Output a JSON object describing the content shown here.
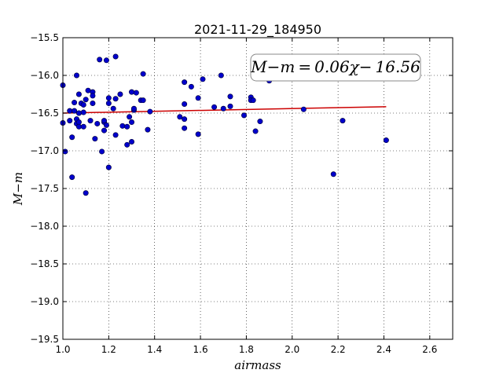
{
  "chart_data": {
    "type": "scatter",
    "title": "2021-11-29_184950",
    "xlabel": "airmass",
    "ylabel": "M−m",
    "xlim": [
      1.0,
      2.7
    ],
    "ylim": [
      -19.5,
      -15.5
    ],
    "y_inverted": false,
    "grid": true,
    "xticks": [
      "1.0",
      "1.2",
      "1.4",
      "1.6",
      "1.8",
      "2.0",
      "2.2",
      "2.4",
      "2.6"
    ],
    "yticks": [
      "−15.5",
      "−16.0",
      "−16.5",
      "−17.0",
      "−17.5",
      "−18.0",
      "−18.5",
      "−19.0",
      "−19.5"
    ],
    "annotation": "M−m = 0.06χ− 16.56",
    "point_color": "#0000cc",
    "fit_color": "#cc0000",
    "fit": {
      "slope": 0.06,
      "intercept": -16.56,
      "x_range": [
        1.0,
        2.41
      ]
    },
    "points": [
      {
        "x": 1.0,
        "y": -16.13
      },
      {
        "x": 1.0,
        "y": -16.63
      },
      {
        "x": 1.01,
        "y": -17.01
      },
      {
        "x": 1.03,
        "y": -16.47
      },
      {
        "x": 1.03,
        "y": -16.6
      },
      {
        "x": 1.04,
        "y": -16.82
      },
      {
        "x": 1.04,
        "y": -17.35
      },
      {
        "x": 1.05,
        "y": -16.36
      },
      {
        "x": 1.05,
        "y": -16.47
      },
      {
        "x": 1.06,
        "y": -16.0
      },
      {
        "x": 1.06,
        "y": -16.58
      },
      {
        "x": 1.06,
        "y": -16.64
      },
      {
        "x": 1.07,
        "y": -16.25
      },
      {
        "x": 1.07,
        "y": -16.5
      },
      {
        "x": 1.07,
        "y": -16.62
      },
      {
        "x": 1.07,
        "y": -16.68
      },
      {
        "x": 1.08,
        "y": -16.37
      },
      {
        "x": 1.09,
        "y": -16.39
      },
      {
        "x": 1.09,
        "y": -16.49
      },
      {
        "x": 1.09,
        "y": -16.68
      },
      {
        "x": 1.1,
        "y": -17.56
      },
      {
        "x": 1.1,
        "y": -16.32
      },
      {
        "x": 1.11,
        "y": -16.2
      },
      {
        "x": 1.12,
        "y": -16.6
      },
      {
        "x": 1.13,
        "y": -16.22
      },
      {
        "x": 1.13,
        "y": -16.37
      },
      {
        "x": 1.13,
        "y": -16.27
      },
      {
        "x": 1.14,
        "y": -16.84
      },
      {
        "x": 1.15,
        "y": -16.64
      },
      {
        "x": 1.16,
        "y": -15.79
      },
      {
        "x": 1.17,
        "y": -17.01
      },
      {
        "x": 1.18,
        "y": -16.62
      },
      {
        "x": 1.18,
        "y": -16.73
      },
      {
        "x": 1.18,
        "y": -16.6
      },
      {
        "x": 1.19,
        "y": -15.8
      },
      {
        "x": 1.19,
        "y": -16.66
      },
      {
        "x": 1.2,
        "y": -16.3
      },
      {
        "x": 1.2,
        "y": -16.37
      },
      {
        "x": 1.2,
        "y": -17.22
      },
      {
        "x": 1.22,
        "y": -16.44
      },
      {
        "x": 1.23,
        "y": -16.31
      },
      {
        "x": 1.23,
        "y": -16.79
      },
      {
        "x": 1.23,
        "y": -15.75
      },
      {
        "x": 1.25,
        "y": -16.25
      },
      {
        "x": 1.26,
        "y": -16.67
      },
      {
        "x": 1.28,
        "y": -16.92
      },
      {
        "x": 1.28,
        "y": -16.68
      },
      {
        "x": 1.29,
        "y": -16.55
      },
      {
        "x": 1.3,
        "y": -16.22
      },
      {
        "x": 1.3,
        "y": -16.62
      },
      {
        "x": 1.3,
        "y": -16.88
      },
      {
        "x": 1.31,
        "y": -16.46
      },
      {
        "x": 1.31,
        "y": -16.44
      },
      {
        "x": 1.32,
        "y": -16.23
      },
      {
        "x": 1.34,
        "y": -16.33
      },
      {
        "x": 1.35,
        "y": -16.33
      },
      {
        "x": 1.35,
        "y": -15.98
      },
      {
        "x": 1.37,
        "y": -16.72
      },
      {
        "x": 1.38,
        "y": -16.48
      },
      {
        "x": 1.51,
        "y": -16.55
      },
      {
        "x": 1.53,
        "y": -16.09
      },
      {
        "x": 1.53,
        "y": -16.38
      },
      {
        "x": 1.53,
        "y": -16.58
      },
      {
        "x": 1.53,
        "y": -16.7
      },
      {
        "x": 1.56,
        "y": -16.15
      },
      {
        "x": 1.59,
        "y": -16.3
      },
      {
        "x": 1.59,
        "y": -16.78
      },
      {
        "x": 1.61,
        "y": -16.05
      },
      {
        "x": 1.66,
        "y": -16.42
      },
      {
        "x": 1.69,
        "y": -16.0
      },
      {
        "x": 1.7,
        "y": -16.44
      },
      {
        "x": 1.73,
        "y": -16.28
      },
      {
        "x": 1.73,
        "y": -16.41
      },
      {
        "x": 1.79,
        "y": -16.53
      },
      {
        "x": 1.82,
        "y": -16.29
      },
      {
        "x": 1.82,
        "y": -16.33
      },
      {
        "x": 1.83,
        "y": -16.33
      },
      {
        "x": 1.84,
        "y": -16.74
      },
      {
        "x": 1.86,
        "y": -16.61
      },
      {
        "x": 1.9,
        "y": -16.07
      },
      {
        "x": 2.05,
        "y": -16.45
      },
      {
        "x": 2.18,
        "y": -17.31
      },
      {
        "x": 2.22,
        "y": -16.6
      },
      {
        "x": 2.41,
        "y": -16.86
      }
    ]
  }
}
